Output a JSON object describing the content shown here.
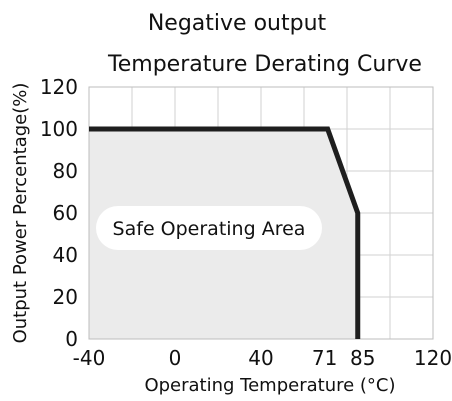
{
  "chart_data": {
    "type": "area",
    "title": "Negative output",
    "subtitle": "Temperature Derating Curve",
    "xlabel": "Operating  Temperature (°C)",
    "ylabel": "Output Power Percentage(%)",
    "x_ticks": [
      -40,
      0,
      40,
      71,
      85,
      120
    ],
    "x_tick_labels": [
      "-40",
      "0",
      "40",
      "71",
      "85",
      "120"
    ],
    "y_ticks": [
      0,
      20,
      40,
      60,
      80,
      100,
      120
    ],
    "y_tick_labels": [
      "0",
      "20",
      "40",
      "60",
      "80",
      "100",
      "120"
    ],
    "x_grid": [
      -40,
      -20,
      0,
      20,
      40,
      60,
      80,
      100,
      120
    ],
    "xlim": [
      -40,
      120
    ],
    "ylim": [
      0,
      120
    ],
    "grid": true,
    "series": [
      {
        "x": [
          -40,
          71,
          85,
          85
        ],
        "y": [
          100,
          100,
          60,
          0
        ]
      }
    ],
    "annotation": "Safe Operating Area",
    "colors": {
      "curve": "#1e1e1e",
      "area_fill": "#ebebeb",
      "grid": "#d2d2d2"
    }
  }
}
